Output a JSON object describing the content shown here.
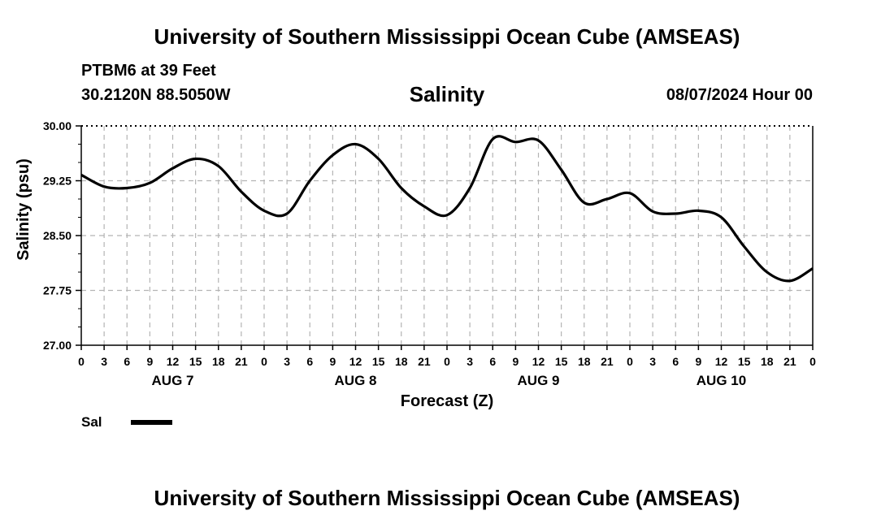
{
  "header": {
    "title": "University of Southern Mississippi Ocean Cube (AMSEAS)",
    "station": "PTBM6 at 39 Feet",
    "coords": "30.2120N  88.5050W",
    "variable": "Salinity",
    "datetime": "08/07/2024 Hour 00"
  },
  "footer": {
    "title": "University of Southern Mississippi Ocean Cube (AMSEAS)"
  },
  "chart_data": {
    "type": "line",
    "title": "Salinity",
    "xlabel": "Forecast (Z)",
    "ylabel": "Salinity (psu)",
    "ylim": [
      27.0,
      30.0
    ],
    "xlim": [
      0,
      96
    ],
    "grid": true,
    "y_ticks": [
      "27.00",
      "27.75",
      "28.50",
      "29.25",
      "30.00"
    ],
    "x_tick_labels": [
      "0",
      "3",
      "6",
      "9",
      "12",
      "15",
      "18",
      "21",
      "0",
      "3",
      "6",
      "9",
      "12",
      "15",
      "18",
      "21",
      "0",
      "3",
      "6",
      "9",
      "12",
      "15",
      "18",
      "21",
      "0",
      "3",
      "6",
      "9",
      "12",
      "15",
      "18",
      "21",
      "0"
    ],
    "day_labels": [
      {
        "label": "AUG 7",
        "hour": 12
      },
      {
        "label": "AUG 8",
        "hour": 36
      },
      {
        "label": "AUG 9",
        "hour": 60
      },
      {
        "label": "AUG 10",
        "hour": 84
      }
    ],
    "legend": {
      "placement": "bottom-left",
      "label": "Sal"
    },
    "series": [
      {
        "name": "Sal",
        "color": "#000000",
        "x": [
          0,
          3,
          6,
          9,
          12,
          15,
          18,
          21,
          24,
          27,
          30,
          33,
          36,
          39,
          42,
          45,
          48,
          51,
          54,
          57,
          60,
          63,
          66,
          69,
          72,
          75,
          78,
          81,
          84,
          87,
          90,
          93,
          96
        ],
        "values": [
          29.33,
          29.17,
          29.15,
          29.22,
          29.42,
          29.55,
          29.45,
          29.1,
          28.84,
          28.8,
          29.25,
          29.6,
          29.75,
          29.55,
          29.15,
          28.9,
          28.78,
          29.15,
          29.82,
          29.78,
          29.8,
          29.4,
          28.95,
          29.0,
          29.08,
          28.83,
          28.8,
          28.84,
          28.75,
          28.35,
          28.0,
          27.88,
          28.05
        ]
      }
    ]
  }
}
